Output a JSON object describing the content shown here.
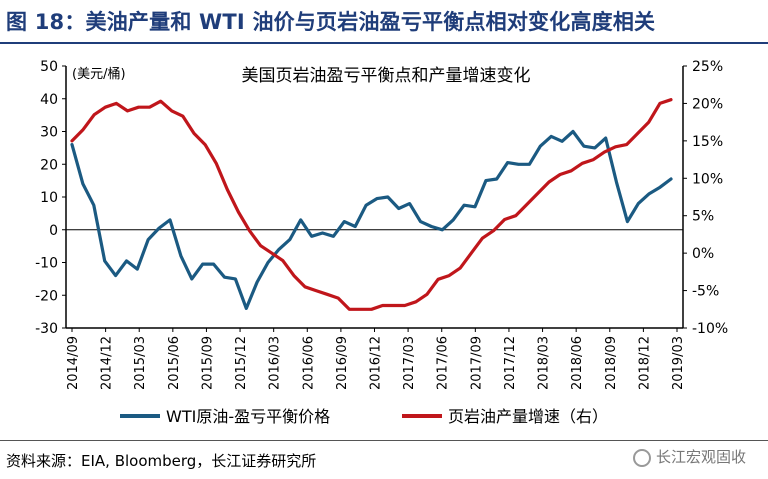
{
  "figure": {
    "title": "图 18：美油产量和 WTI 油价与页岩油盈亏平衡点相对变化高度相关",
    "source": "资料来源：EIA, Bloomberg，长江证券研究所",
    "watermark": "长江宏观固收"
  },
  "chart_data": {
    "type": "line",
    "title": "美国页岩油盈亏平衡点和产量增速变化",
    "y_left_unit": "(美元/桶)",
    "ylim_left": [
      -30,
      50
    ],
    "ylim_right": [
      -10,
      25
    ],
    "y_left_ticks": [
      "50",
      "40",
      "30",
      "20",
      "10",
      "0",
      "-10",
      "-20",
      "-30"
    ],
    "y_right_ticks": [
      "25%",
      "20%",
      "15%",
      "10%",
      "5%",
      "0%",
      "-5%",
      "-10%"
    ],
    "x_tick_labels": [
      "2014/09",
      "2014/12",
      "2015/03",
      "2015/06",
      "2015/09",
      "2015/12",
      "2016/03",
      "2016/06",
      "2016/09",
      "2016/12",
      "2017/03",
      "2017/06",
      "2017/09",
      "2017/12",
      "2018/03",
      "2018/06",
      "2018/09",
      "2018/12",
      "2019/03"
    ],
    "legend": {
      "placement": "bottom"
    },
    "series": [
      {
        "name": "WTI原油-盈亏平衡价格",
        "axis": "left",
        "color": "#1b5a82",
        "values": [
          26,
          14,
          7.5,
          -9.5,
          -14,
          -9.5,
          -12,
          -3,
          0.5,
          3,
          -8,
          -15,
          -10.5,
          -10.5,
          -14.5,
          -15,
          -24,
          -16,
          -10,
          -6,
          -3,
          3,
          -2,
          -1,
          -2,
          2.5,
          1,
          7.5,
          9.5,
          10,
          6.5,
          8,
          2.5,
          1,
          0,
          3,
          7.5,
          7,
          15,
          15.5,
          20.5,
          20,
          20,
          25.5,
          28.5,
          27,
          30,
          25.5,
          25,
          28,
          14.5,
          2.5,
          8,
          11,
          13,
          15.5
        ]
      },
      {
        "name": "页岩油产量增速（右）",
        "axis": "right",
        "color": "#c0161b",
        "values": [
          15,
          16.5,
          18.5,
          19.5,
          20,
          19,
          19.5,
          19.5,
          20.3,
          19,
          18.3,
          16,
          14.5,
          12,
          8.5,
          5.5,
          3,
          1,
          0,
          -1,
          -3,
          -4.5,
          -5,
          -5.5,
          -6,
          -7.5,
          -7.5,
          -7.5,
          -7,
          -7,
          -7,
          -6.5,
          -5.5,
          -3.5,
          -3,
          -2,
          0,
          2,
          3,
          4.5,
          5,
          6.5,
          8,
          9.5,
          10.5,
          11,
          12,
          12.5,
          13.5,
          14.2,
          14.5,
          16,
          17.5,
          20,
          20.5
        ]
      }
    ]
  }
}
